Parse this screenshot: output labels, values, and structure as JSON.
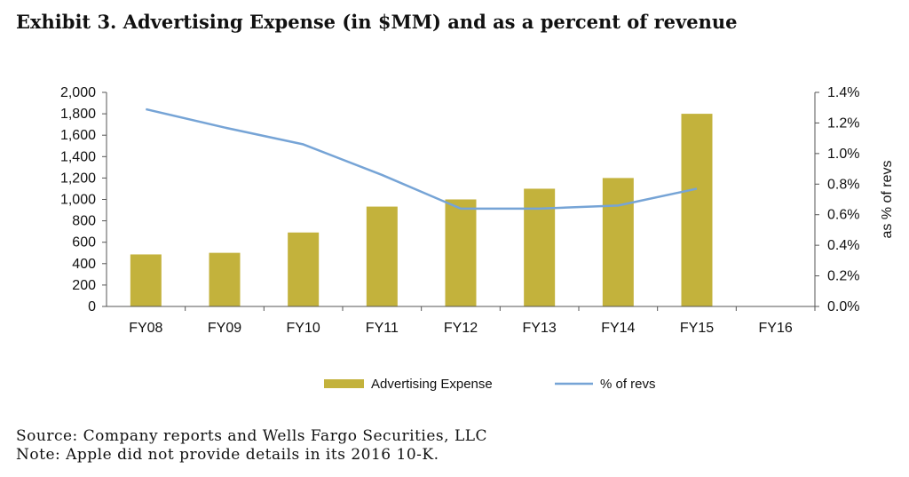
{
  "title": "Exhibit 3. Advertising Expense (in $MM) and as a percent of revenue",
  "source": "Source: Company reports and Wells Fargo Securities, LLC",
  "note": "Note: Apple did not provide details in its 2016 10-K.",
  "colors": {
    "bar": "#c3b23c",
    "line": "#76a4d6",
    "axis": "#555555"
  },
  "chart_data": {
    "type": "bar",
    "categories": [
      "FY08",
      "FY09",
      "FY10",
      "FY11",
      "FY12",
      "FY13",
      "FY14",
      "FY15",
      "FY16"
    ],
    "series": [
      {
        "name": "Advertising Expense",
        "type": "bar",
        "axis": "left",
        "values": [
          486,
          501,
          691,
          933,
          1000,
          1100,
          1200,
          1800,
          null
        ]
      },
      {
        "name": "% of revs",
        "type": "line",
        "axis": "right",
        "values": [
          1.29,
          1.17,
          1.06,
          0.86,
          0.64,
          0.64,
          0.66,
          0.77,
          null
        ]
      }
    ],
    "ylim": [
      0,
      2000
    ],
    "y_ticks": [
      "0",
      "200",
      "400",
      "600",
      "800",
      "1,000",
      "1,200",
      "1,400",
      "1,600",
      "1,800",
      "2,000"
    ],
    "y2lim": [
      0,
      1.4
    ],
    "y2_ticks": [
      "0.0%",
      "0.2%",
      "0.4%",
      "0.6%",
      "0.8%",
      "1.0%",
      "1.2%",
      "1.4%"
    ],
    "xlabel": "",
    "ylabel": "",
    "y2label": "as % of revs",
    "legend": [
      "Advertising Expense",
      "% of revs"
    ],
    "legend_position": "bottom"
  }
}
